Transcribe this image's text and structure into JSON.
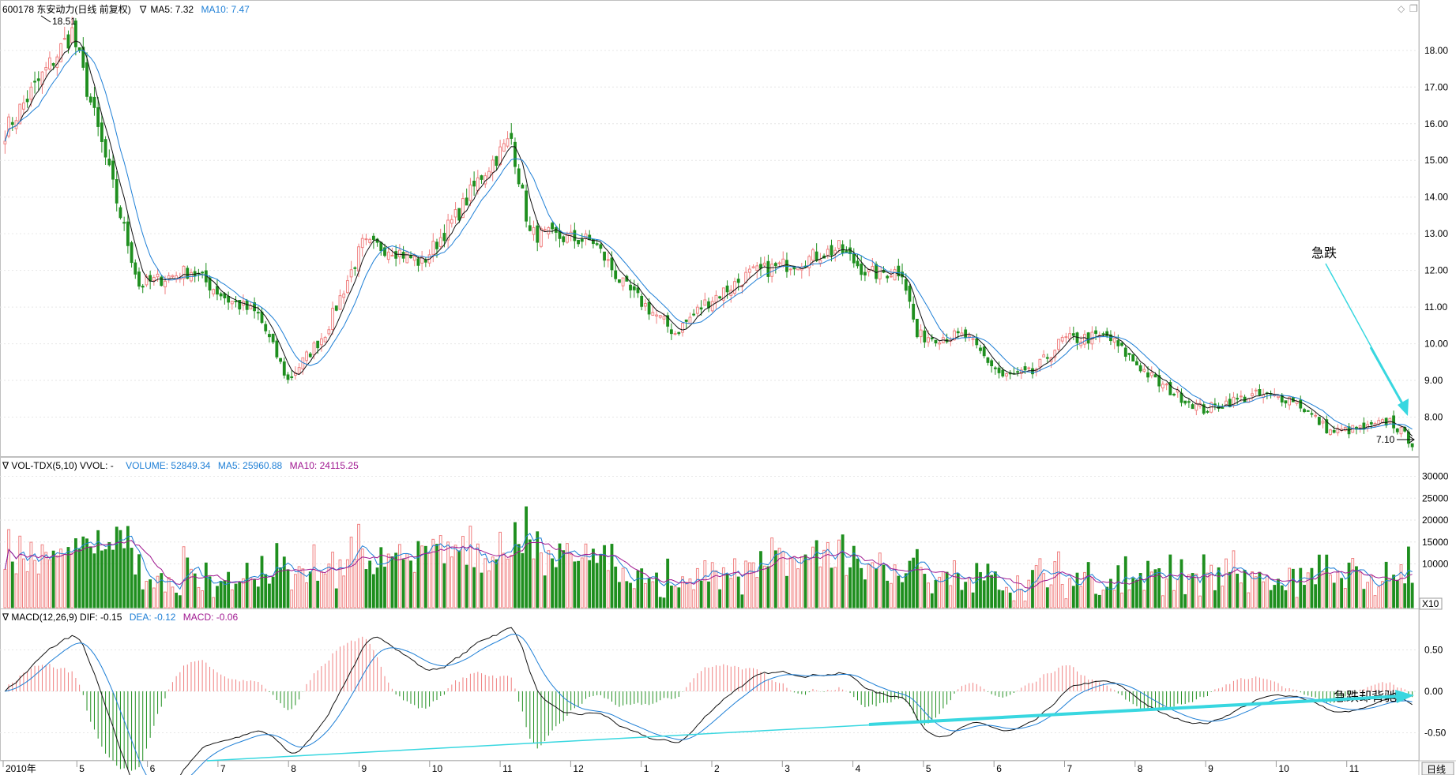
{
  "header": {
    "price_title": "600178 东安动力(日线 前复权)",
    "price_ma5": "∇ MA5: 7.32",
    "price_ma10": "MA10: 7.47",
    "vol_title": "∇ VOL-TDX(5,10)  VVOL: -",
    "vol_volume": "VOLUME: 52849.34",
    "vol_ma5": "MA5: 25960.88",
    "vol_ma10": "MA10: 24115.25",
    "macd_title": "∇ MACD(12,26,9)  DIF: -0.15",
    "macd_dea": "DEA: -0.12",
    "macd_macd": "MACD: -0.06"
  },
  "annotations": {
    "high_label": "18.51",
    "low_label": "7.10",
    "crash_label": "急跌",
    "divergence_label": "急跌却背驰",
    "vol_unit": "X10",
    "period_label": "日线"
  },
  "colors": {
    "up": "#f08080",
    "down": "#1f8f1f",
    "ma5_line": "#111111",
    "ma10_line": "#1e7fd6",
    "vol_ma10": "#a01890",
    "arrow": "#38d7e0"
  },
  "icons": [
    "diamond-icon",
    "restore-icon"
  ],
  "chart_data": [
    {
      "type": "candlestick",
      "title": "600178 东安动力(日线 前复权)",
      "ylim": [
        7.0,
        18.51
      ],
      "yticks": [
        "18.00",
        "17.00",
        "16.00",
        "15.00",
        "14.00",
        "13.00",
        "12.00",
        "11.00",
        "10.00",
        "9.00",
        "8.00"
      ],
      "x_month_labels": [
        "2010年",
        "5",
        "6",
        "7",
        "8",
        "9",
        "10",
        "11",
        "12",
        "1",
        "2",
        "3",
        "4",
        "5",
        "6",
        "7",
        "8",
        "9",
        "10",
        "11"
      ],
      "key_points": [
        {
          "index": 0,
          "close": 15.8
        },
        {
          "index": 18,
          "close": 18.5
        },
        {
          "index": 36,
          "close": 11.6
        },
        {
          "index": 50,
          "close": 12.0
        },
        {
          "index": 60,
          "close": 11.2
        },
        {
          "index": 68,
          "close": 10.8
        },
        {
          "index": 76,
          "close": 9.0
        },
        {
          "index": 86,
          "close": 10.3
        },
        {
          "index": 96,
          "close": 12.7
        },
        {
          "index": 104,
          "close": 12.6
        },
        {
          "index": 112,
          "close": 12.2
        },
        {
          "index": 122,
          "close": 13.6
        },
        {
          "index": 128,
          "close": 14.6
        },
        {
          "index": 136,
          "close": 15.6
        },
        {
          "index": 141,
          "close": 13.0
        },
        {
          "index": 158,
          "close": 12.8
        },
        {
          "index": 166,
          "close": 11.6
        },
        {
          "index": 180,
          "close": 10.3
        },
        {
          "index": 188,
          "close": 11.1
        },
        {
          "index": 200,
          "close": 11.9
        },
        {
          "index": 215,
          "close": 12.3
        },
        {
          "index": 224,
          "close": 12.6
        },
        {
          "index": 232,
          "close": 11.9
        },
        {
          "index": 241,
          "close": 12.0
        },
        {
          "index": 245,
          "close": 10.2
        },
        {
          "index": 258,
          "close": 10.2
        },
        {
          "index": 268,
          "close": 9.1
        },
        {
          "index": 276,
          "close": 9.2
        },
        {
          "index": 284,
          "close": 10.1
        },
        {
          "index": 296,
          "close": 10.2
        },
        {
          "index": 310,
          "close": 8.9
        },
        {
          "index": 322,
          "close": 8.2
        },
        {
          "index": 328,
          "close": 8.4
        },
        {
          "index": 336,
          "close": 8.6
        },
        {
          "index": 346,
          "close": 8.5
        },
        {
          "index": 356,
          "close": 7.6
        },
        {
          "index": 366,
          "close": 7.7
        },
        {
          "index": 372,
          "close": 7.9
        },
        {
          "index": 378,
          "close": 7.3
        }
      ],
      "series": [
        {
          "name": "MA5",
          "value_last": 7.32
        },
        {
          "name": "MA10",
          "value_last": 7.47
        }
      ],
      "high": 18.51,
      "low": 7.1
    },
    {
      "type": "bar",
      "title": "VOL-TDX(5,10)",
      "ylim": [
        0,
        30000
      ],
      "yticks": [
        "30000",
        "25000",
        "20000",
        "15000",
        "10000"
      ],
      "unit": "X10",
      "latest": {
        "VOLUME": 52849.34,
        "MA5": 25960.88,
        "MA10": 24115.25
      }
    },
    {
      "type": "bar",
      "title": "MACD(12,26,9)",
      "ylim": [
        -0.75,
        0.75
      ],
      "yticks": [
        "0.50",
        "0.00",
        "-0.50"
      ],
      "latest": {
        "DIF": -0.15,
        "DEA": -0.12,
        "MACD": -0.06
      }
    }
  ]
}
